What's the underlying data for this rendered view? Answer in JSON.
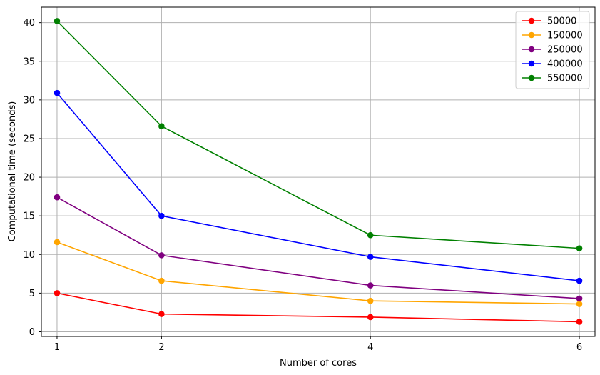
{
  "chart_data": {
    "type": "line",
    "title": "",
    "xlabel": "Number of cores",
    "ylabel": "Computational time (seconds)",
    "x": [
      1,
      2,
      4,
      6
    ],
    "xticks": [
      1,
      2,
      4,
      6
    ],
    "yticks": [
      0,
      5,
      10,
      15,
      20,
      25,
      30,
      35,
      40
    ],
    "xlim": [
      0.85,
      6.15
    ],
    "ylim": [
      -0.6,
      42.0
    ],
    "grid": true,
    "legend_position": "top-right",
    "series": [
      {
        "name": "50000",
        "color": "#ff0000",
        "values": [
          5.0,
          2.3,
          1.9,
          1.3
        ]
      },
      {
        "name": "150000",
        "color": "#ffa500",
        "values": [
          11.6,
          6.6,
          4.0,
          3.6
        ]
      },
      {
        "name": "250000",
        "color": "#800080",
        "values": [
          17.4,
          9.9,
          6.0,
          4.3
        ]
      },
      {
        "name": "400000",
        "color": "#0000ff",
        "values": [
          30.9,
          15.0,
          9.7,
          6.6
        ]
      },
      {
        "name": "550000",
        "color": "#008000",
        "values": [
          40.2,
          26.6,
          12.5,
          10.8
        ]
      }
    ]
  }
}
